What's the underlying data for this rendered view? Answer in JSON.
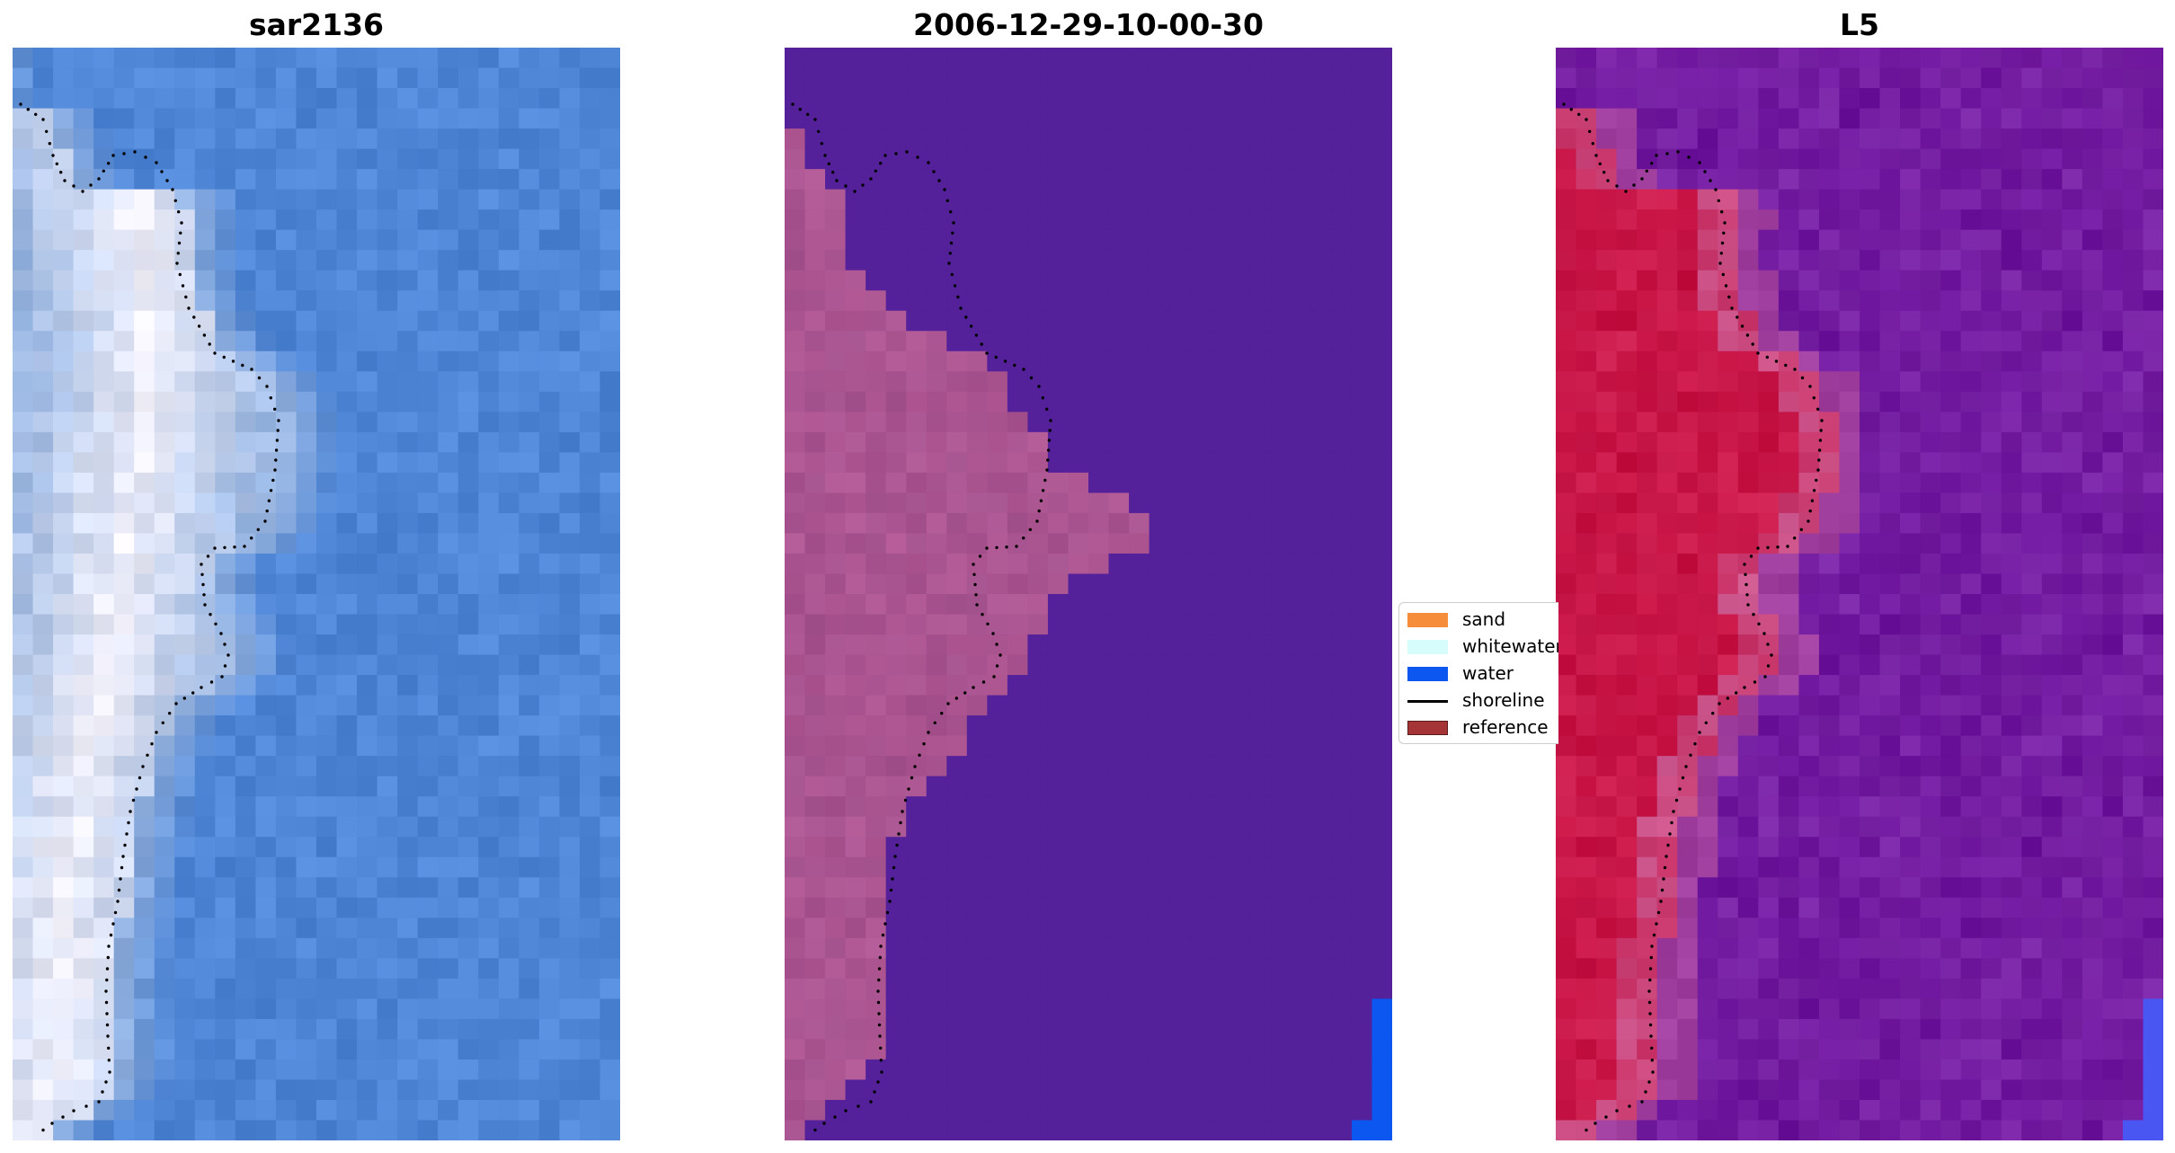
{
  "panels": [
    {
      "title": "sar2136",
      "kind": "rgb"
    },
    {
      "title": "2006-12-29-10-00-30",
      "kind": "classified"
    },
    {
      "title": "L5",
      "kind": "mndwi"
    }
  ],
  "legend": {
    "items": [
      {
        "label": "sand",
        "type": "patch",
        "color": "#f68d3b"
      },
      {
        "label": "whitewater",
        "type": "patch",
        "color": "#d6fcfc"
      },
      {
        "label": "water",
        "type": "patch",
        "color": "#0b57f0"
      },
      {
        "label": "shoreline",
        "type": "line",
        "color": "#000000"
      },
      {
        "label": "reference",
        "type": "patch",
        "color": "#a53437"
      }
    ]
  },
  "colors": {
    "rgb_water": "#4f86d6",
    "rgb_bright": "#f4f2fb",
    "class_water": "#54219a",
    "class_land": "#a4528e",
    "class_water_pixels": "#0b57f0",
    "index_water": "#7a24a6",
    "index_land": "#c10b3c",
    "index_edge": "#cf5f96",
    "index_corner": "#4a56f2",
    "shoreline_dots": "#000000"
  }
}
